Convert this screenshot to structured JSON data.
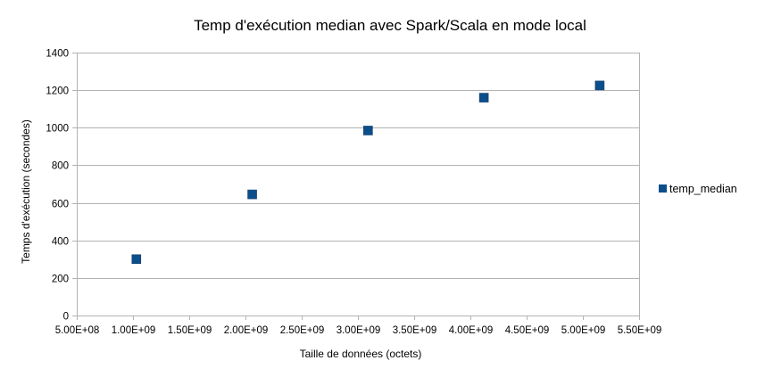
{
  "chart_data": {
    "type": "scatter",
    "title": "Temp d'exécution median avec Spark/Scala en mode local",
    "xlabel": "Taille de données (octets)",
    "ylabel": "Temps d'exécution (secondes)",
    "xlim": [
      500000000,
      5500000000
    ],
    "ylim": [
      0,
      1400
    ],
    "x_ticks": [
      500000000,
      1000000000,
      1500000000,
      2000000000,
      2500000000,
      3000000000,
      3500000000,
      4000000000,
      4500000000,
      5000000000,
      5500000000
    ],
    "x_tick_labels": [
      "5.00E+08",
      "1.00E+09",
      "1.50E+09",
      "2.00E+09",
      "2.50E+09",
      "3.00E+09",
      "3.50E+09",
      "4.00E+09",
      "4.50E+09",
      "5.00E+09",
      "5.50E+09"
    ],
    "y_ticks": [
      0,
      200,
      400,
      600,
      800,
      1000,
      1200,
      1400
    ],
    "y_tick_labels": [
      "0",
      "200",
      "400",
      "600",
      "800",
      "1000",
      "1200",
      "1400"
    ],
    "grid": "horizontal",
    "legend_position": "right",
    "series": [
      {
        "name": "temp_median",
        "color": "#0b4e8c",
        "marker": "square",
        "x": [
          1030000000,
          2060000000,
          3090000000,
          4120000000,
          5150000000
        ],
        "y": [
          300,
          645,
          985,
          1160,
          1225
        ]
      }
    ]
  }
}
